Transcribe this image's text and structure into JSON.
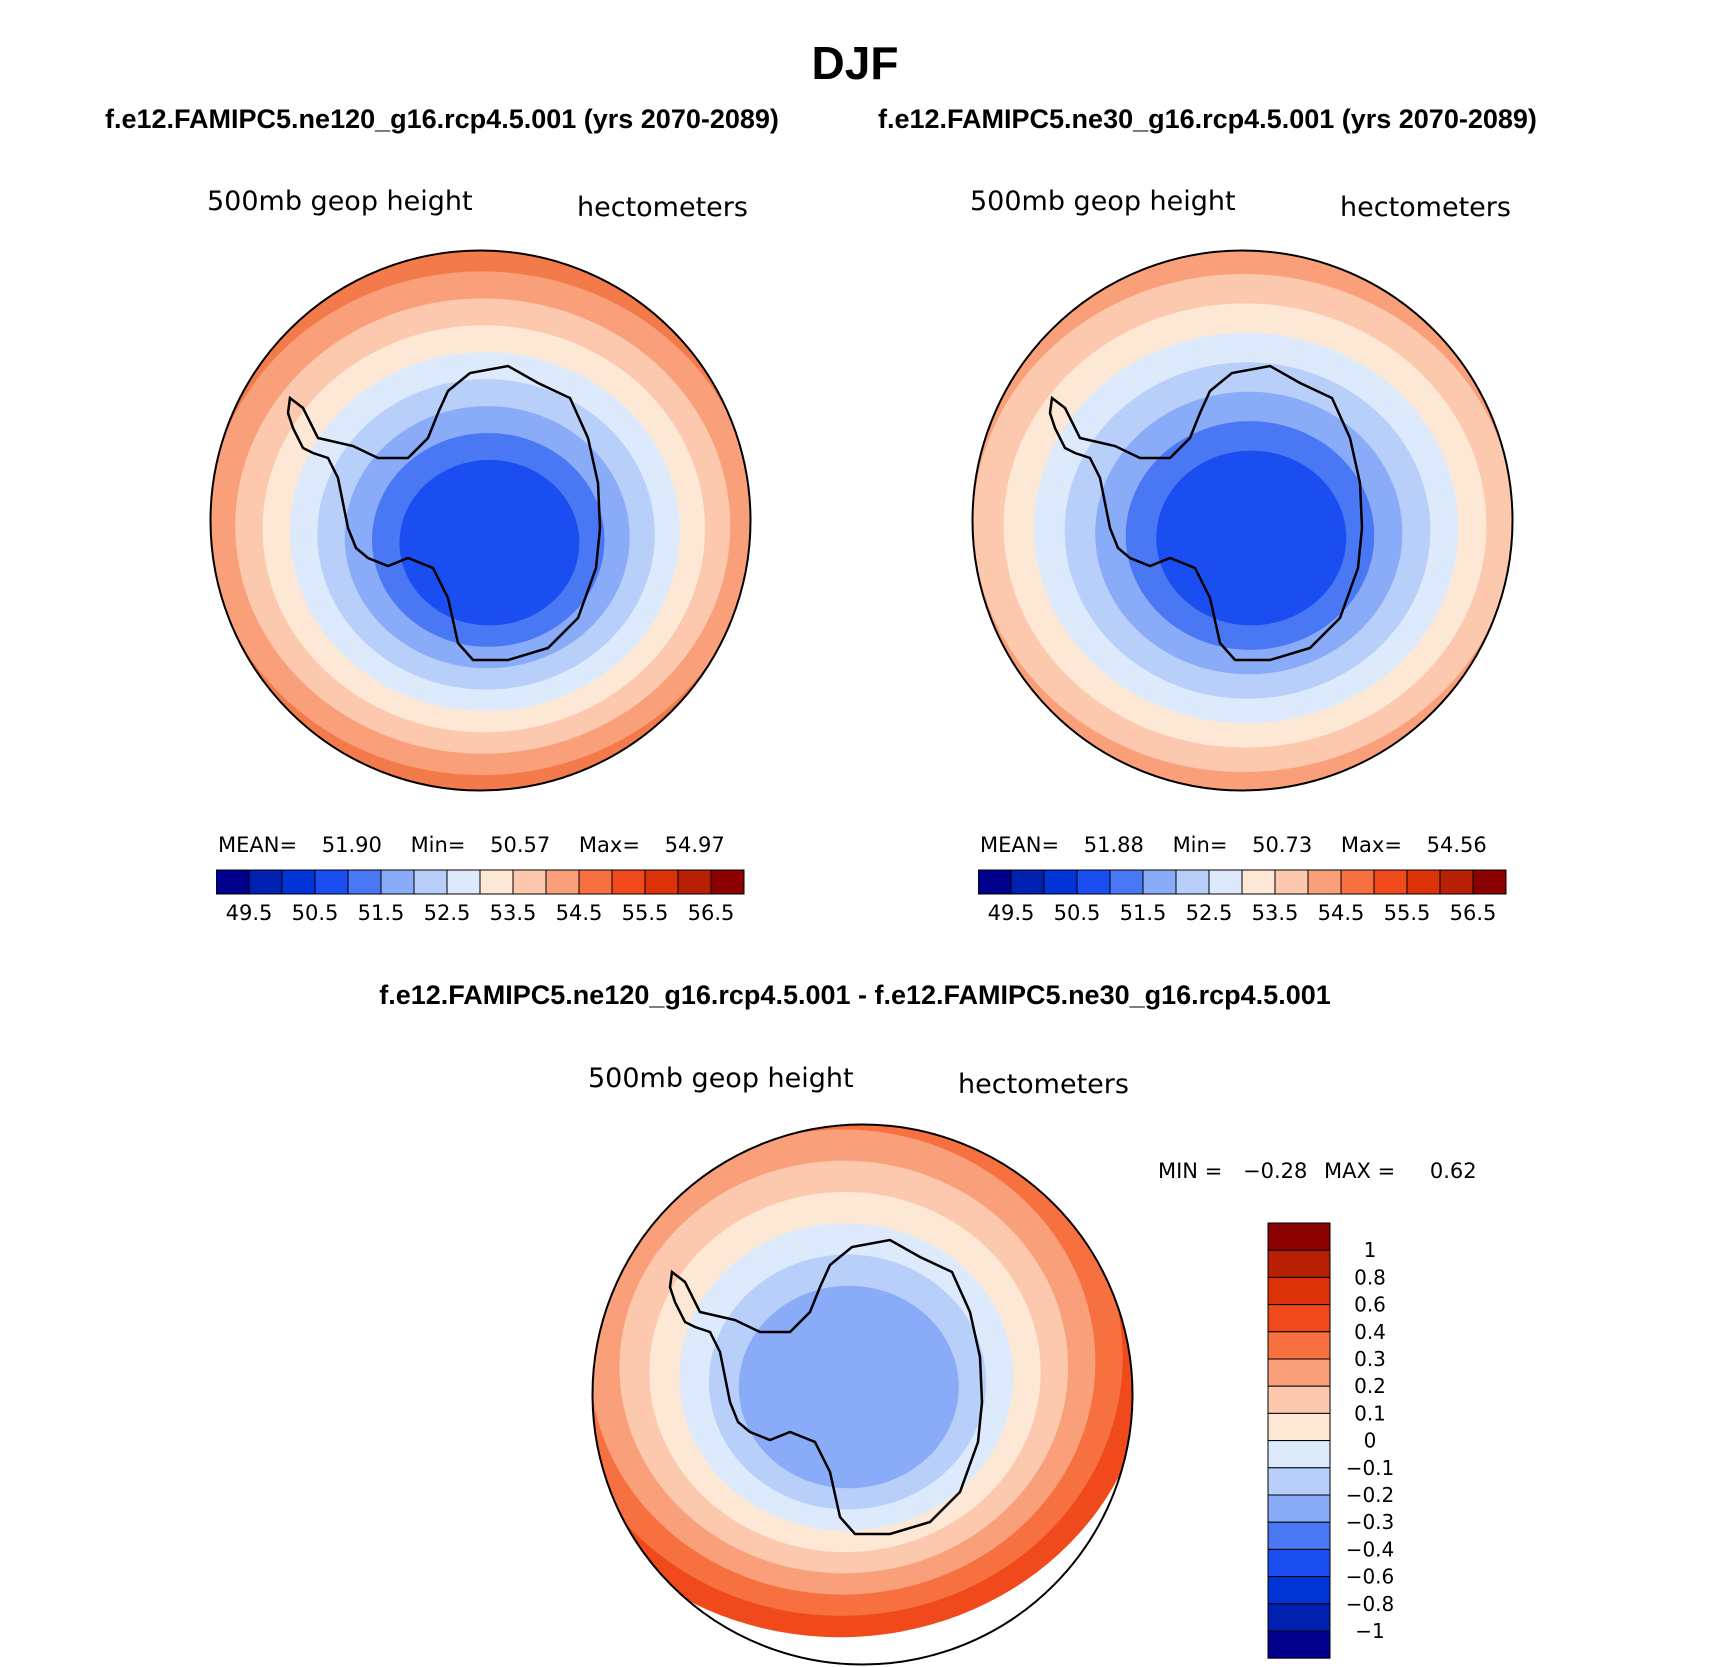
{
  "title": "DJF",
  "panels": [
    {
      "case_title": "f.e12.FAMIPC5.ne120_g16.rcp4.5.001 (yrs 2070-2089)",
      "variable": "500mb geop height",
      "units": "hectometers",
      "stats": {
        "mean_label": "MEAN=",
        "mean": "51.90",
        "min_label": "Min=",
        "min": "50.57",
        "max_label": "Max=",
        "max": "54.97"
      }
    },
    {
      "case_title": "f.e12.FAMIPC5.ne30_g16.rcp4.5.001 (yrs 2070-2089)",
      "variable": "500mb geop height",
      "units": "hectometers",
      "stats": {
        "mean_label": "MEAN=",
        "mean": "51.88",
        "min_label": "Min=",
        "min": "50.73",
        "max_label": "Max=",
        "max": "54.56"
      }
    }
  ],
  "abs_colorbar": {
    "colors": [
      "#00008b",
      "#0020b0",
      "#0034d6",
      "#1a4ef0",
      "#4a78f5",
      "#8aabf7",
      "#b8cffa",
      "#ddeafc",
      "#fde8d6",
      "#fcc8ae",
      "#f9a07a",
      "#f7703f",
      "#f04a1c",
      "#dc320a",
      "#b82006",
      "#8b0000"
    ],
    "ticks": [
      "49.5",
      "50.5",
      "51.5",
      "52.5",
      "53.5",
      "54.5",
      "55.5",
      "56.5"
    ]
  },
  "diff_panel": {
    "title": "f.e12.FAMIPC5.ne120_g16.rcp4.5.001 - f.e12.FAMIPC5.ne30_g16.rcp4.5.001",
    "variable": "500mb geop height",
    "units": "hectometers",
    "stats": {
      "min_label": "MIN =",
      "min": "−0.28",
      "max_label": "MAX =",
      "max": "0.62"
    }
  },
  "diff_colorbar": {
    "colors": [
      "#8b0000",
      "#b82006",
      "#dc320a",
      "#f04a1c",
      "#f7703f",
      "#f9a07a",
      "#fcc8ae",
      "#fde8d6",
      "#ddeafc",
      "#b8cffa",
      "#8aabf7",
      "#4a78f5",
      "#1a4ef0",
      "#0034d6",
      "#0020b0",
      "#00008b"
    ],
    "ticks": [
      "1",
      "0.8",
      "0.6",
      "0.4",
      "0.3",
      "0.2",
      "0.1",
      "0",
      "−0.1",
      "−0.2",
      "−0.3",
      "−0.4",
      "−0.6",
      "−0.8",
      "−1"
    ]
  },
  "map_colors": {
    "ring_abs_left": [
      "#f37a4a",
      "#f9a07a",
      "#fcc8ae",
      "#fde8d6",
      "#ddeafc",
      "#b8cffa",
      "#8aabf7",
      "#4a78f5",
      "#1a4ef0"
    ],
    "ring_abs_right": [
      "#f9a07a",
      "#fcc8ae",
      "#fde8d6",
      "#ddeafc",
      "#b8cffa",
      "#8aabf7",
      "#4a78f5",
      "#1a4ef0"
    ],
    "ring_diff": [
      "#f04a1c",
      "#f7703f",
      "#f9a07a",
      "#fcc8ae",
      "#fde8d6",
      "#ddeafc",
      "#b8cffa",
      "#8aabf7"
    ]
  }
}
